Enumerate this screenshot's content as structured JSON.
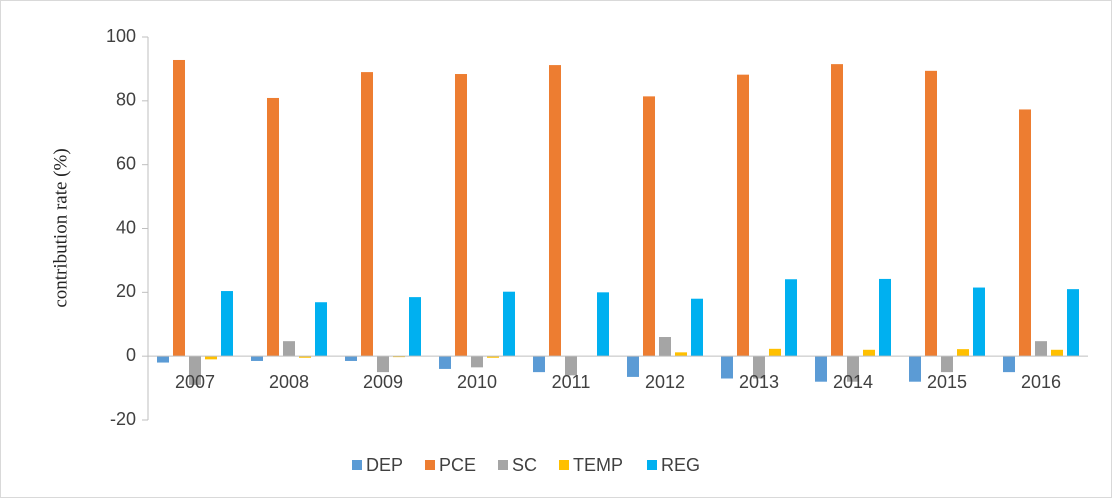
{
  "chart_data": {
    "type": "bar",
    "y_label": "contribution rate (%)",
    "categories": [
      "2007",
      "2008",
      "2009",
      "2010",
      "2011",
      "2012",
      "2013",
      "2014",
      "2015",
      "2016"
    ],
    "series": [
      {
        "name": "DEP",
        "color": "#5b9bd5",
        "values": [
          -2,
          -1.5,
          -1.5,
          -4,
          -5,
          -6.5,
          -7,
          -8,
          -8,
          -5
        ]
      },
      {
        "name": "PCE",
        "color": "#ed7d31",
        "values": [
          92.8,
          80.9,
          89,
          88.4,
          91.2,
          81.4,
          88.2,
          91.5,
          89.4,
          77.3
        ]
      },
      {
        "name": "SC",
        "color": "#a5a5a5",
        "values": [
          -9,
          4.7,
          -5,
          -3.5,
          -6,
          6,
          -7,
          -8,
          -5,
          4.7
        ]
      },
      {
        "name": "TEMP",
        "color": "#ffc000",
        "values": [
          -1,
          -0.5,
          -0.3,
          -0.5,
          0,
          1.2,
          2.3,
          2,
          2.2,
          2
        ]
      },
      {
        "name": "REG",
        "color": "#00b0f0",
        "values": [
          20.4,
          16.9,
          18.5,
          20.2,
          20,
          18,
          24.1,
          24.2,
          21.5,
          21
        ]
      }
    ],
    "ylim": [
      -20,
      100
    ],
    "yticks": [
      -20,
      0,
      20,
      40,
      60,
      80,
      100
    ],
    "legend": "bottom"
  }
}
